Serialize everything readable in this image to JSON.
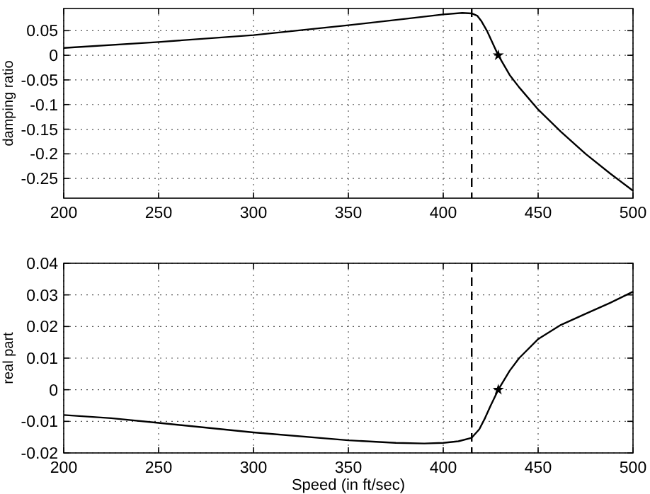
{
  "chart_data": [
    {
      "type": "line",
      "ylabel": "damping ratio",
      "xlim": [
        200,
        500
      ],
      "xticks": [
        200,
        250,
        300,
        350,
        400,
        450,
        500
      ],
      "ylim": [
        -0.29,
        0.095
      ],
      "yticks": [
        0.05,
        0,
        -0.05,
        -0.1,
        -0.15,
        -0.2,
        -0.25
      ],
      "grid": true,
      "series": [
        {
          "type": "line",
          "color": "#000000",
          "x": [
            200,
            250,
            300,
            350,
            380,
            400,
            410,
            415,
            418,
            420,
            423,
            426,
            429,
            435,
            440,
            450,
            462,
            475,
            488,
            500
          ],
          "values": [
            0.015,
            0.027,
            0.041,
            0.061,
            0.074,
            0.083,
            0.086,
            0.085,
            0.08,
            0.07,
            0.05,
            0.025,
            0,
            -0.04,
            -0.065,
            -0.11,
            -0.155,
            -0.2,
            -0.24,
            -0.275
          ],
          "marker": "none",
          "line_style": "solid"
        },
        {
          "type": "scatter",
          "color": "#000000",
          "x": [
            429
          ],
          "values": [
            0
          ],
          "marker": "star"
        }
      ],
      "ref_lines": [
        {
          "axis": "x",
          "value": 415,
          "color": "#000000",
          "line_style": "dashed"
        }
      ]
    },
    {
      "type": "line",
      "xlabel": "Speed (in ft/sec)",
      "ylabel": "real part",
      "xlim": [
        200,
        500
      ],
      "xticks": [
        200,
        250,
        300,
        350,
        400,
        450,
        500
      ],
      "ylim": [
        -0.02,
        0.04
      ],
      "yticks": [
        -0.02,
        -0.01,
        0,
        0.01,
        0.02,
        0.03,
        0.04
      ],
      "grid": true,
      "series": [
        {
          "type": "line",
          "color": "#000000",
          "x": [
            200,
            225,
            250,
            300,
            350,
            375,
            390,
            400,
            408,
            415,
            419,
            422,
            425,
            429,
            435,
            440,
            450,
            462,
            475,
            488,
            500
          ],
          "values": [
            -0.008,
            -0.009,
            -0.0105,
            -0.0135,
            -0.016,
            -0.0168,
            -0.017,
            -0.0168,
            -0.0163,
            -0.0152,
            -0.0125,
            -0.009,
            -0.005,
            0,
            0.006,
            0.01,
            0.016,
            0.0205,
            0.024,
            0.0275,
            0.031
          ],
          "marker": "none",
          "line_style": "solid"
        },
        {
          "type": "scatter",
          "color": "#000000",
          "x": [
            429
          ],
          "values": [
            0
          ],
          "marker": "star"
        }
      ],
      "ref_lines": [
        {
          "axis": "x",
          "value": 415,
          "color": "#000000",
          "line_style": "dashed"
        }
      ]
    }
  ]
}
